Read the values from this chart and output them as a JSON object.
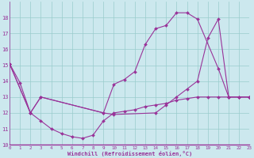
{
  "bg_color": "#cce8ee",
  "line_color": "#993399",
  "grid_color": "#99cccc",
  "xlabel": "Windchill (Refroidissement éolien,°C)",
  "xlim": [
    0,
    23
  ],
  "ylim": [
    10,
    19
  ],
  "yticks": [
    10,
    11,
    12,
    13,
    14,
    15,
    16,
    17,
    18
  ],
  "xticks": [
    0,
    1,
    2,
    3,
    4,
    5,
    6,
    7,
    8,
    9,
    10,
    11,
    12,
    13,
    14,
    15,
    16,
    17,
    18,
    19,
    20,
    21,
    22,
    23
  ],
  "line1_x": [
    0,
    1,
    2,
    3,
    4,
    5,
    6,
    7,
    8,
    9,
    10,
    11,
    12,
    13,
    14,
    15,
    16,
    17,
    18,
    19,
    20,
    21,
    22,
    23
  ],
  "line1_y": [
    15.1,
    13.9,
    12.0,
    11.5,
    11.0,
    10.7,
    10.5,
    10.4,
    10.6,
    11.5,
    12.0,
    12.1,
    12.2,
    12.4,
    12.5,
    12.6,
    12.8,
    12.9,
    13.0,
    13.0,
    13.0,
    13.0,
    13.0,
    13.0
  ],
  "line2_x": [
    0,
    2,
    3,
    9,
    10,
    11,
    12,
    13,
    14,
    15,
    16,
    17,
    18,
    20,
    21,
    22,
    23
  ],
  "line2_y": [
    15.1,
    12.0,
    13.0,
    12.0,
    13.8,
    14.1,
    14.6,
    16.3,
    17.3,
    17.5,
    18.3,
    18.3,
    17.9,
    14.8,
    13.0,
    13.0,
    13.0
  ],
  "line3_x": [
    0,
    2,
    3,
    9,
    10,
    14,
    15,
    16,
    17,
    18,
    19,
    20,
    21,
    22,
    23
  ],
  "line3_y": [
    15.1,
    12.0,
    13.0,
    12.0,
    11.9,
    12.0,
    12.5,
    13.0,
    13.5,
    14.0,
    16.7,
    17.9,
    13.0,
    13.0,
    13.0
  ]
}
